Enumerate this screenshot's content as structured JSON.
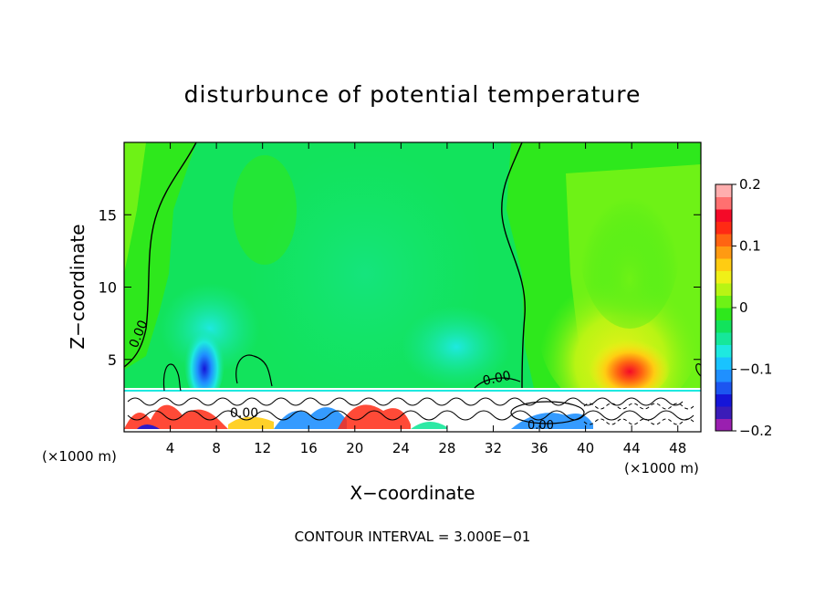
{
  "chart_data": {
    "type": "heatmap",
    "title": "disturbunce of potential temperature",
    "xlabel": "X−coordinate",
    "ylabel": "Z−coordinate",
    "x_unit_left": "(×1000 m)",
    "x_unit_right": "(×1000 m)",
    "xlim": [
      0,
      50
    ],
    "ylim": [
      0,
      20
    ],
    "xticks": [
      4,
      8,
      12,
      16,
      20,
      24,
      28,
      32,
      36,
      40,
      44,
      48
    ],
    "yticks": [
      5,
      10,
      15
    ],
    "colorbar": {
      "range": [
        -0.2,
        0.2
      ],
      "ticks": [
        -0.2,
        -0.1,
        0,
        0.1,
        0.2
      ],
      "tick_labels": [
        "−0.2",
        "−0.1",
        "0",
        "0.1",
        "0.2"
      ],
      "colors": [
        "#9a1fb0",
        "#3a1cb8",
        "#1515d8",
        "#1c55f0",
        "#1f90ff",
        "#19c3ff",
        "#1ee9e0",
        "#16e79a",
        "#12e35c",
        "#2ee81c",
        "#6ef216",
        "#b8f414",
        "#f0f018",
        "#ffcc12",
        "#ff9a12",
        "#ff6412",
        "#ff2a14",
        "#f40a28",
        "#ff7070",
        "#ffaeae"
      ]
    },
    "contour_labels": [
      "0.00",
      "0.00",
      "0.00",
      "0.00"
    ],
    "contour_interval_text": "CONTOUR INTERVAL = 3.000E−01",
    "features": [
      {
        "x": 7,
        "z": 4,
        "value": -0.18
      },
      {
        "x": 11,
        "z": 4.5,
        "value": 0.02
      },
      {
        "x": 20,
        "z": 10,
        "value": -0.03
      },
      {
        "x": 30,
        "z": 4,
        "value": -0.04
      },
      {
        "x": 44,
        "z": 4,
        "value": 0.16
      },
      {
        "x": 44,
        "z": 8,
        "value": 0.06
      }
    ],
    "colors": {
      "background": "#ffffff",
      "axis": "#000000"
    }
  }
}
